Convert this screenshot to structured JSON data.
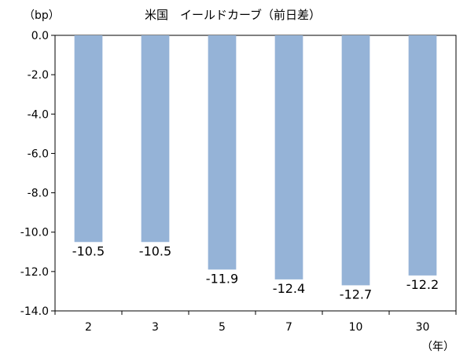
{
  "chart_data": {
    "type": "bar",
    "title": "米国　イールドカーブ（前日差）",
    "ylabel": "（bp）",
    "xlabel": "（年）",
    "categories": [
      "2",
      "3",
      "5",
      "7",
      "10",
      "30"
    ],
    "values": [
      -10.5,
      -10.5,
      -11.9,
      -12.4,
      -12.7,
      -12.2
    ],
    "data_labels": [
      "-10.5",
      "-10.5",
      "-11.9",
      "-12.4",
      "-12.7",
      "-12.2"
    ],
    "ylim": [
      -14,
      0
    ],
    "y_ticks": [
      0,
      -2,
      -4,
      -6,
      -8,
      -10,
      -12,
      -14
    ],
    "y_tick_labels": [
      "0.0",
      "-2.0",
      "-4.0",
      "-6.0",
      "-8.0",
      "-10.0",
      "-12.0",
      "-14.0"
    ],
    "grid": false,
    "legend": "none",
    "bar_color": "#95B3D7",
    "axis_color": "#000000"
  }
}
